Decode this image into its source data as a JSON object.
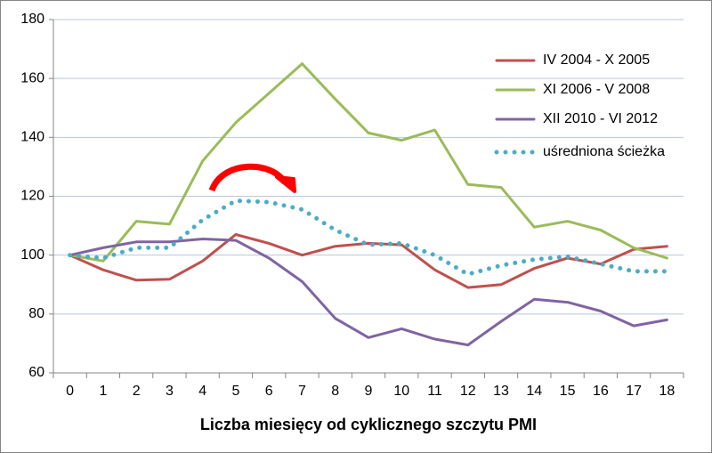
{
  "chart_data": {
    "type": "line",
    "x_label": "Liczba miesięcy od cyklicznego szczytu PMI",
    "categories": [
      "0",
      "1",
      "2",
      "3",
      "4",
      "5",
      "6",
      "7",
      "8",
      "9",
      "10",
      "11",
      "12",
      "13",
      "14",
      "15",
      "16",
      "17",
      "18"
    ],
    "ylim": [
      60,
      180
    ],
    "yticks": [
      60,
      80,
      100,
      120,
      140,
      160,
      180
    ],
    "grid": true,
    "series": [
      {
        "name": "IV 2004 - X 2005",
        "color": "#c0504d",
        "style": "solid",
        "values": [
          100,
          95,
          91.5,
          91.8,
          98,
          107,
          104,
          100,
          103,
          104,
          103.5,
          95,
          89,
          90,
          95.5,
          99,
          97,
          102,
          103
        ]
      },
      {
        "name": "XI 2006 - V 2008",
        "color": "#9bbb59",
        "style": "solid",
        "values": [
          100,
          98,
          111.5,
          110.5,
          132,
          145,
          155,
          165,
          153,
          141.5,
          139,
          142.5,
          124,
          123,
          109.5,
          111.5,
          108.5,
          102.5,
          99
        ]
      },
      {
        "name": "XII 2010 - VI 2012",
        "color": "#8064a2",
        "style": "solid",
        "values": [
          100,
          102.5,
          104.5,
          104.5,
          105.5,
          105,
          99,
          91,
          78.5,
          72,
          75,
          71.5,
          69.5,
          77.5,
          85,
          84,
          81,
          76,
          78
        ]
      },
      {
        "name": "uśredniona ścieżka",
        "color": "#4bacc6",
        "style": "dotted",
        "values": [
          100,
          99,
          102.5,
          102.5,
          112,
          118.5,
          118,
          115.5,
          108.5,
          103.5,
          104,
          100,
          93.5,
          96.5,
          98.5,
          99.5,
          97,
          94.5,
          94.5
        ]
      }
    ]
  }
}
